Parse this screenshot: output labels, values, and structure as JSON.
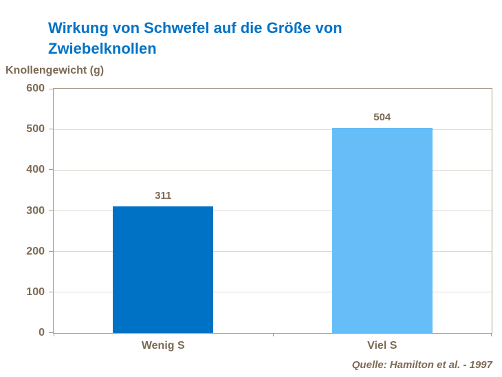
{
  "title": "Wirkung von Schwefel auf die Größe von Zwiebelknollen",
  "y_axis_title": "Knollengewicht (g)",
  "source_note": "Quelle: Hamilton et al. - 1997",
  "colors": {
    "title_blue": "#0072C6",
    "bar_wenig_s": "#0072C6",
    "bar_viel_s": "#66BDF7",
    "axis_text_brown": "#7C6A54",
    "axis_line": "#A69A88",
    "gridline": "#DFDAD2"
  },
  "chart_data": {
    "type": "bar",
    "title": "Wirkung von Schwefel auf die Größe von Zwiebelknollen",
    "categories": [
      "Wenig S",
      "Viel S"
    ],
    "values": [
      311,
      504
    ],
    "bar_colors": [
      "#0072C6",
      "#66BDF7"
    ],
    "xlabel": "",
    "ylabel": "Knollengewicht (g)",
    "ylim": [
      0,
      600
    ],
    "yticks": [
      0,
      100,
      200,
      300,
      400,
      500,
      600
    ],
    "grid": true,
    "legend": "none",
    "source": "Quelle: Hamilton et al. - 1997"
  }
}
